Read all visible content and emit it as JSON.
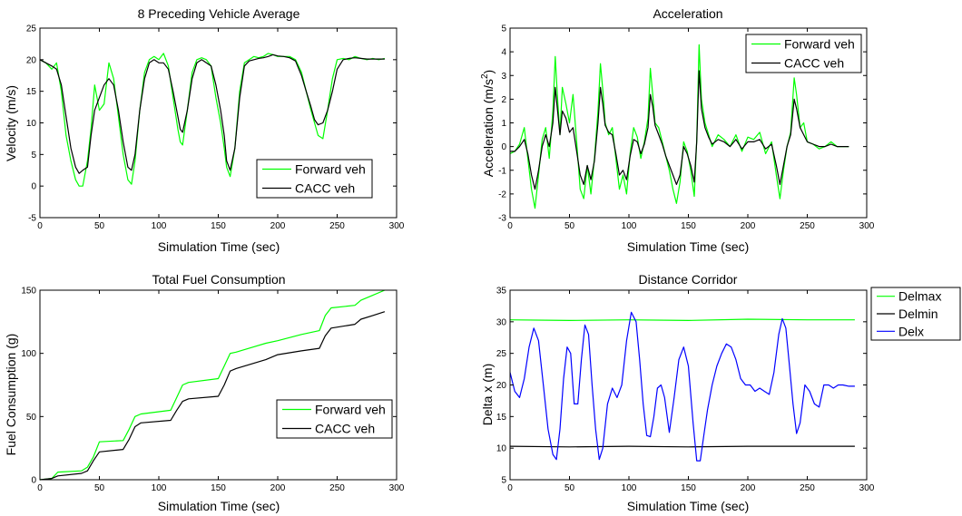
{
  "figure": {
    "background": "#ffffff",
    "axis_color": "#000000"
  },
  "chart_data": [
    {
      "type": "line",
      "title": "8 Preceding Vehicle Average",
      "xlabel": "Simulation Time (sec)",
      "ylabel": "Velocity (m/s)",
      "xlim": [
        0,
        300
      ],
      "ylim": [
        -5,
        25
      ],
      "xticks": [
        0,
        50,
        100,
        150,
        200,
        250,
        300
      ],
      "yticks": [
        -5,
        0,
        5,
        10,
        15,
        20,
        25
      ],
      "grid": false,
      "legend_position": "bottom-right",
      "series": [
        {
          "name": "Forward veh",
          "color": "#00ff00",
          "x": [
            0,
            5,
            10,
            14,
            18,
            22,
            26,
            30,
            33,
            36,
            40,
            43,
            46,
            50,
            54,
            58,
            62,
            66,
            70,
            74,
            77,
            80,
            84,
            88,
            92,
            96,
            100,
            104,
            108,
            112,
            116,
            118,
            120,
            124,
            128,
            132,
            136,
            140,
            144,
            148,
            152,
            155,
            157,
            160,
            164,
            168,
            172,
            176,
            180,
            184,
            188,
            192,
            196,
            200,
            205,
            210,
            215,
            220,
            224,
            228,
            231,
            234,
            238,
            242,
            246,
            250,
            255,
            260,
            265,
            270,
            275,
            280,
            285,
            290
          ],
          "y": [
            20,
            19.5,
            18.5,
            19.5,
            15,
            8,
            4,
            1,
            0,
            0,
            4,
            9,
            16,
            12,
            13,
            19.5,
            17,
            11,
            5,
            1,
            0.3,
            4,
            12,
            18,
            20,
            20.5,
            20,
            21,
            19,
            14,
            9,
            7,
            6.5,
            12,
            18,
            20,
            20.3,
            20,
            19,
            14,
            10,
            6,
            3,
            1.5,
            6,
            15,
            19.5,
            20,
            20.5,
            20.3,
            20.5,
            21,
            20.8,
            20.5,
            20.5,
            20.5,
            20,
            18,
            15,
            12,
            10,
            8,
            7.5,
            12,
            17,
            20,
            20.2,
            20,
            20.5,
            20.2,
            20,
            20.2,
            20,
            20.2
          ]
        },
        {
          "name": "CACC veh",
          "color": "#000000",
          "x": [
            0,
            5,
            10,
            14,
            18,
            22,
            26,
            30,
            33,
            36,
            40,
            43,
            46,
            50,
            54,
            58,
            62,
            66,
            70,
            74,
            77,
            80,
            84,
            88,
            92,
            96,
            100,
            104,
            108,
            112,
            116,
            118,
            120,
            124,
            128,
            132,
            136,
            140,
            144,
            148,
            152,
            155,
            157,
            160,
            164,
            168,
            172,
            176,
            180,
            184,
            188,
            192,
            196,
            200,
            205,
            210,
            215,
            220,
            224,
            228,
            231,
            234,
            238,
            242,
            246,
            250,
            255,
            260,
            265,
            270,
            275,
            280,
            285,
            290
          ],
          "y": [
            20,
            19.5,
            19,
            18.5,
            16,
            11,
            6,
            3,
            2,
            2.5,
            3,
            8,
            12,
            14,
            16,
            17,
            16,
            12,
            7,
            3,
            2.5,
            5,
            12,
            17,
            19.5,
            20,
            19.5,
            19.5,
            18.5,
            15,
            11,
            9,
            8.5,
            12,
            17,
            19.5,
            20,
            19.5,
            19,
            16,
            12,
            8,
            4,
            2.5,
            6,
            14,
            19,
            19.8,
            20,
            20.2,
            20.3,
            20.5,
            20.8,
            20.6,
            20.5,
            20.3,
            19.8,
            17.5,
            15,
            12.5,
            10.5,
            9.7,
            10,
            12,
            15,
            18.5,
            20,
            20.2,
            20.3,
            20.2,
            20.1,
            20.1,
            20.1,
            20.1
          ]
        }
      ]
    },
    {
      "type": "line",
      "title": "Acceleration",
      "xlabel": "Simulation Time (sec)",
      "ylabel": "Acceleration (m/s",
      "ylabel_sup": "2",
      "ylabel_suffix": ")",
      "xlim": [
        0,
        300
      ],
      "ylim": [
        -3,
        5
      ],
      "xticks": [
        0,
        50,
        100,
        150,
        200,
        250,
        300
      ],
      "yticks": [
        -3,
        -2,
        -1,
        0,
        1,
        2,
        3,
        4,
        5
      ],
      "grid": false,
      "legend_position": "top-right",
      "series": [
        {
          "name": "Forward veh",
          "color": "#00ff00",
          "x": [
            0,
            4,
            8,
            12,
            15,
            18,
            21,
            24,
            27,
            30,
            33,
            36,
            38,
            40,
            42,
            44,
            47,
            50,
            53,
            56,
            59,
            62,
            65,
            68,
            71,
            74,
            76,
            78,
            80,
            83,
            86,
            89,
            92,
            95,
            98,
            101,
            104,
            107,
            110,
            113,
            116,
            118,
            120,
            122,
            125,
            128,
            131,
            134,
            137,
            140,
            143,
            146,
            149,
            152,
            155,
            157,
            159,
            161,
            164,
            167,
            170,
            175,
            180,
            185,
            190,
            195,
            200,
            205,
            210,
            215,
            220,
            224,
            227,
            230,
            233,
            236,
            239,
            241,
            244,
            247,
            250,
            255,
            260,
            265,
            270,
            275,
            280,
            285
          ],
          "y": [
            -0.3,
            -0.2,
            0.1,
            0.8,
            -0.5,
            -1.8,
            -2.6,
            -1.2,
            0.3,
            0.8,
            -0.5,
            1.5,
            3.8,
            2.0,
            0.5,
            2.5,
            1.8,
            1.0,
            2.2,
            0.2,
            -1.8,
            -2.2,
            -0.8,
            -2.0,
            -0.5,
            1.5,
            3.5,
            2.4,
            1.0,
            0.5,
            0.8,
            -0.5,
            -1.8,
            -1.2,
            -2.0,
            -0.3,
            0.8,
            0.4,
            -0.5,
            0.2,
            1.2,
            3.3,
            2.2,
            1.0,
            0.8,
            0.2,
            -0.4,
            -1.0,
            -1.8,
            -2.4,
            -1.5,
            0.2,
            -0.2,
            -1.0,
            -2.1,
            0.3,
            4.3,
            2.0,
            1.0,
            0.5,
            0.0,
            0.5,
            0.3,
            0.0,
            0.5,
            -0.2,
            0.4,
            0.3,
            0.6,
            -0.3,
            0.2,
            -1.2,
            -2.2,
            -1.0,
            0.0,
            0.6,
            2.9,
            2.2,
            0.8,
            1.0,
            0.2,
            0.1,
            -0.1,
            0.0,
            0.2,
            0.0,
            0.0,
            0.0
          ]
        },
        {
          "name": "CACC veh",
          "color": "#000000",
          "x": [
            0,
            4,
            8,
            12,
            15,
            18,
            21,
            24,
            27,
            30,
            33,
            36,
            38,
            40,
            42,
            44,
            47,
            50,
            53,
            56,
            59,
            62,
            65,
            68,
            71,
            74,
            76,
            78,
            80,
            83,
            86,
            89,
            92,
            95,
            98,
            101,
            104,
            107,
            110,
            113,
            116,
            118,
            120,
            122,
            125,
            128,
            131,
            134,
            137,
            140,
            143,
            146,
            149,
            152,
            155,
            157,
            159,
            161,
            164,
            167,
            170,
            175,
            180,
            185,
            190,
            195,
            200,
            205,
            210,
            215,
            220,
            224,
            227,
            230,
            233,
            236,
            239,
            241,
            244,
            247,
            250,
            255,
            260,
            265,
            270,
            275,
            280,
            285
          ],
          "y": [
            -0.2,
            -0.2,
            0.0,
            0.3,
            -0.3,
            -1.2,
            -1.8,
            -1.0,
            0.0,
            0.5,
            0.0,
            1.0,
            2.5,
            1.5,
            0.5,
            1.5,
            1.2,
            0.6,
            0.8,
            -0.2,
            -1.2,
            -1.6,
            -0.8,
            -1.4,
            -0.6,
            1.0,
            2.5,
            1.8,
            0.9,
            0.6,
            0.5,
            -0.3,
            -1.2,
            -1.0,
            -1.4,
            -0.4,
            0.3,
            0.2,
            -0.3,
            0.1,
            0.8,
            2.2,
            1.7,
            0.9,
            0.5,
            0.1,
            -0.4,
            -0.8,
            -1.2,
            -1.6,
            -1.2,
            0.0,
            -0.3,
            -0.8,
            -1.5,
            0.2,
            3.2,
            1.6,
            0.8,
            0.4,
            0.1,
            0.3,
            0.2,
            0.0,
            0.3,
            -0.1,
            0.2,
            0.2,
            0.3,
            -0.1,
            0.1,
            -0.8,
            -1.6,
            -0.8,
            0.0,
            0.5,
            2.0,
            1.6,
            0.8,
            0.5,
            0.2,
            0.1,
            0.0,
            0.0,
            0.1,
            0.0,
            0.0,
            0.0
          ]
        }
      ]
    },
    {
      "type": "line",
      "title": "Total Fuel Consumption",
      "xlabel": "Simulation Time (sec)",
      "ylabel": "Fuel Consumption (g)",
      "xlim": [
        0,
        300
      ],
      "ylim": [
        0,
        150
      ],
      "xticks": [
        0,
        50,
        100,
        150,
        200,
        250,
        300
      ],
      "yticks": [
        0,
        50,
        100,
        150
      ],
      "grid": false,
      "legend_position": "bottom-right",
      "series": [
        {
          "name": "Forward veh",
          "color": "#00ff00",
          "x": [
            0,
            10,
            15,
            35,
            40,
            45,
            50,
            70,
            75,
            80,
            85,
            110,
            115,
            120,
            125,
            150,
            155,
            160,
            165,
            190,
            200,
            220,
            235,
            240,
            245,
            265,
            270,
            280,
            290
          ],
          "y": [
            0,
            1,
            6,
            7,
            10,
            18,
            30,
            31,
            40,
            50,
            52,
            55,
            65,
            75,
            77,
            80,
            90,
            100,
            101,
            108,
            110,
            115,
            118,
            130,
            136,
            138,
            142,
            146,
            150
          ]
        },
        {
          "name": "CACC veh",
          "color": "#000000",
          "x": [
            0,
            10,
            15,
            35,
            40,
            45,
            50,
            70,
            75,
            80,
            85,
            110,
            115,
            120,
            125,
            150,
            155,
            160,
            165,
            190,
            200,
            220,
            235,
            240,
            245,
            265,
            270,
            280,
            290
          ],
          "y": [
            0,
            1,
            3,
            5,
            7,
            15,
            22,
            24,
            32,
            42,
            45,
            47,
            55,
            62,
            64,
            66,
            75,
            86,
            88,
            95,
            99,
            102,
            104,
            114,
            120,
            123,
            127,
            130,
            133
          ]
        }
      ]
    },
    {
      "type": "line",
      "title": "Distance Corridor",
      "xlabel": "Simulation Time (sec)",
      "ylabel": "Delta x  (m)",
      "xlim": [
        0,
        300
      ],
      "ylim": [
        5,
        35
      ],
      "xticks": [
        0,
        50,
        100,
        150,
        200,
        250,
        300
      ],
      "yticks": [
        5,
        10,
        15,
        20,
        25,
        30,
        35
      ],
      "grid": false,
      "legend_position": "outside-top-right",
      "series": [
        {
          "name": "Delmax",
          "color": "#00ff00",
          "x": [
            0,
            50,
            100,
            150,
            200,
            250,
            290
          ],
          "y": [
            30.3,
            30.2,
            30.3,
            30.2,
            30.4,
            30.3,
            30.3
          ]
        },
        {
          "name": "Delmin",
          "color": "#000000",
          "x": [
            0,
            50,
            100,
            150,
            200,
            250,
            290
          ],
          "y": [
            10.3,
            10.2,
            10.3,
            10.2,
            10.3,
            10.3,
            10.3
          ]
        },
        {
          "name": "Delx",
          "color": "#0000ff",
          "x": [
            0,
            4,
            8,
            12,
            16,
            20,
            24,
            28,
            32,
            36,
            39,
            42,
            45,
            48,
            51,
            54,
            57,
            60,
            63,
            66,
            69,
            72,
            75,
            78,
            82,
            86,
            90,
            94,
            98,
            102,
            106,
            109,
            112,
            115,
            118,
            121,
            124,
            127,
            130,
            134,
            138,
            142,
            146,
            150,
            154,
            157,
            160,
            163,
            166,
            170,
            174,
            178,
            182,
            186,
            190,
            194,
            198,
            202,
            206,
            210,
            214,
            218,
            222,
            226,
            229,
            232,
            235,
            238,
            241,
            244,
            248,
            252,
            256,
            260,
            264,
            268,
            272,
            276,
            280,
            285,
            290
          ],
          "y": [
            22,
            19,
            18,
            21,
            26,
            29,
            27,
            20,
            13,
            9,
            8.2,
            13,
            21,
            26,
            25,
            17,
            17,
            24,
            29.5,
            28,
            20,
            13,
            8.2,
            10,
            17,
            19.5,
            18,
            20,
            27,
            31.5,
            30,
            24,
            17,
            12,
            11.8,
            15,
            19.5,
            20,
            18,
            12.5,
            18,
            24,
            26,
            23,
            14,
            8,
            8,
            12,
            16,
            20,
            23,
            25,
            26.5,
            26,
            24,
            21,
            20,
            20,
            19,
            19.5,
            19,
            18.5,
            22,
            28,
            30.5,
            29,
            23,
            17,
            12.3,
            14,
            20,
            19,
            17,
            16.5,
            20,
            20,
            19.5,
            20,
            20,
            19.8,
            19.8
          ]
        }
      ]
    }
  ]
}
